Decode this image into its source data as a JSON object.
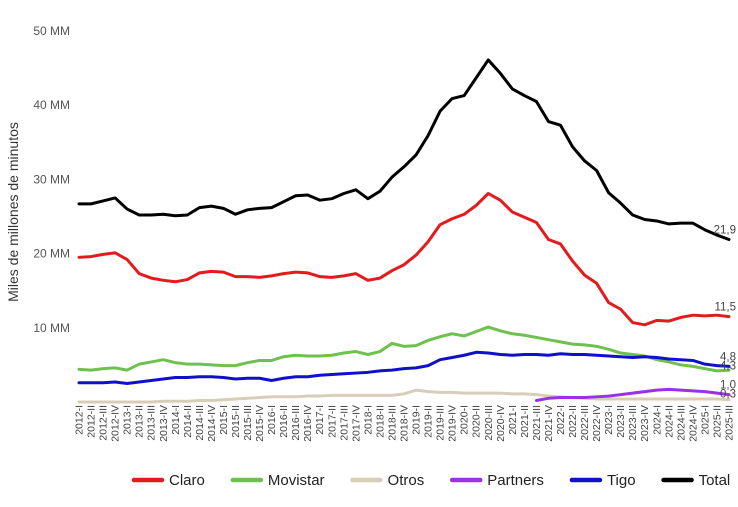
{
  "chart_data": {
    "type": "line",
    "title": "",
    "ylabel": "Miles de millones de minutos",
    "ylim": [
      0,
      50
    ],
    "y_ticks": [
      {
        "value": 10,
        "label": "10 MM"
      },
      {
        "value": 20,
        "label": "20 MM"
      },
      {
        "value": 30,
        "label": "30 MM"
      },
      {
        "value": 40,
        "label": "40 MM"
      },
      {
        "value": 50,
        "label": "50 MM"
      }
    ],
    "grid": false,
    "legend_position": "bottom",
    "categories": [
      "2012-I",
      "2012-II",
      "2012-III",
      "2012-IV",
      "2013-I",
      "2013-II",
      "2013-III",
      "2013-IV",
      "2014-I",
      "2014-II",
      "2014-III",
      "2014-IV",
      "2015-I",
      "2015-II",
      "2015-III",
      "2015-IV",
      "2016-I",
      "2016-II",
      "2016-III",
      "2016-IV",
      "2017-I",
      "2017-II",
      "2017-III",
      "2017-IV",
      "2018-I",
      "2018-II",
      "2018-III",
      "2018-IV",
      "2019-I",
      "2019-II",
      "2019-III",
      "2019-IV",
      "2020-I",
      "2020-II",
      "2020-III",
      "2020-IV",
      "2021-I",
      "2021-II",
      "2021-III",
      "2021-IV",
      "2022-I",
      "2022-II",
      "2022-III",
      "2022-IV",
      "2023-I",
      "2023-II",
      "2023-III",
      "2023-IV",
      "2024-I",
      "2024-II",
      "2024-III",
      "2024-IV",
      "2025-I",
      "2025-II",
      "2025-III"
    ],
    "series": [
      {
        "name": "Claro",
        "color": "#e41a1c",
        "values": [
          19.5,
          19.6,
          19.9,
          20.1,
          19.2,
          17.3,
          16.7,
          16.4,
          16.2,
          16.5,
          17.4,
          17.6,
          17.5,
          16.9,
          16.9,
          16.8,
          17.0,
          17.3,
          17.5,
          17.4,
          16.9,
          16.8,
          17.0,
          17.3,
          16.4,
          16.7,
          17.7,
          18.5,
          19.8,
          21.6,
          23.9,
          24.7,
          25.3,
          26.5,
          28.1,
          27.2,
          25.6,
          24.9,
          24.2,
          21.9,
          21.3,
          19.0,
          17.1,
          16.0,
          13.4,
          12.5,
          10.7,
          10.4,
          11.0,
          10.9,
          11.4,
          11.7,
          11.6,
          11.7,
          11.5
        ],
        "end_label": "11,5"
      },
      {
        "name": "Movistar",
        "color": "#6ec14f",
        "values": [
          4.4,
          4.3,
          4.5,
          4.6,
          4.3,
          5.1,
          5.4,
          5.7,
          5.3,
          5.1,
          5.1,
          5.0,
          4.9,
          4.9,
          5.3,
          5.6,
          5.6,
          6.1,
          6.3,
          6.2,
          6.2,
          6.3,
          6.6,
          6.8,
          6.4,
          6.8,
          7.9,
          7.5,
          7.6,
          8.3,
          8.8,
          9.2,
          8.9,
          9.5,
          10.1,
          9.6,
          9.2,
          9.0,
          8.7,
          8.4,
          8.1,
          7.8,
          7.7,
          7.5,
          7.1,
          6.6,
          6.4,
          6.2,
          5.7,
          5.4,
          5.0,
          4.8,
          4.5,
          4.2,
          4.3
        ],
        "end_label": "4,3"
      },
      {
        "name": "Otros",
        "color": "#d8cdb8",
        "values": [
          0.0,
          0.0,
          0.0,
          0.0,
          0.0,
          0.0,
          0.0,
          0.1,
          0.1,
          0.1,
          0.2,
          0.2,
          0.3,
          0.4,
          0.5,
          0.6,
          0.7,
          0.7,
          0.7,
          0.8,
          0.8,
          0.9,
          0.9,
          0.9,
          0.9,
          0.9,
          0.9,
          1.1,
          1.6,
          1.4,
          1.3,
          1.3,
          1.2,
          1.2,
          1.2,
          1.2,
          1.1,
          1.1,
          1.0,
          0.8,
          0.7,
          0.6,
          0.5,
          0.4,
          0.4,
          0.4,
          0.4,
          0.4,
          0.4,
          0.4,
          0.4,
          0.4,
          0.4,
          0.4,
          0.3
        ],
        "end_label": "0,3"
      },
      {
        "name": "Partners",
        "color": "#9b30e8",
        "values": [
          null,
          null,
          null,
          null,
          null,
          null,
          null,
          null,
          null,
          null,
          null,
          null,
          null,
          null,
          null,
          null,
          null,
          null,
          null,
          null,
          null,
          null,
          null,
          null,
          null,
          null,
          null,
          null,
          null,
          null,
          null,
          null,
          null,
          null,
          null,
          null,
          null,
          null,
          0.2,
          0.5,
          0.6,
          0.6,
          0.6,
          0.7,
          0.8,
          1.0,
          1.2,
          1.4,
          1.6,
          1.7,
          1.6,
          1.5,
          1.4,
          1.2,
          1.0
        ],
        "end_label": "1,0"
      },
      {
        "name": "Tigo",
        "color": "#1010cc",
        "values": [
          2.6,
          2.6,
          2.6,
          2.7,
          2.5,
          2.7,
          2.9,
          3.1,
          3.3,
          3.3,
          3.4,
          3.4,
          3.3,
          3.1,
          3.2,
          3.2,
          2.9,
          3.2,
          3.4,
          3.4,
          3.6,
          3.7,
          3.8,
          3.9,
          4.0,
          4.2,
          4.3,
          4.5,
          4.6,
          4.9,
          5.7,
          6.0,
          6.3,
          6.7,
          6.6,
          6.4,
          6.3,
          6.4,
          6.4,
          6.3,
          6.5,
          6.4,
          6.4,
          6.3,
          6.2,
          6.1,
          6.0,
          6.1,
          6.0,
          5.8,
          5.7,
          5.6,
          5.1,
          4.9,
          4.8
        ],
        "end_label": "4,8"
      },
      {
        "name": "Total",
        "color": "#000000",
        "values": [
          26.7,
          26.7,
          27.1,
          27.5,
          26.0,
          25.2,
          25.2,
          25.3,
          25.1,
          25.2,
          26.2,
          26.4,
          26.1,
          25.3,
          25.9,
          26.1,
          26.2,
          27.0,
          27.8,
          27.9,
          27.2,
          27.4,
          28.1,
          28.6,
          27.4,
          28.4,
          30.3,
          31.7,
          33.3,
          35.9,
          39.2,
          40.9,
          41.3,
          43.7,
          46.1,
          44.3,
          42.2,
          41.3,
          40.5,
          37.8,
          37.3,
          34.4,
          32.5,
          31.2,
          28.2,
          26.8,
          25.2,
          24.6,
          24.4,
          24.0,
          24.1,
          24.1,
          23.2,
          22.5,
          21.9
        ],
        "end_label": "21,9"
      }
    ]
  }
}
